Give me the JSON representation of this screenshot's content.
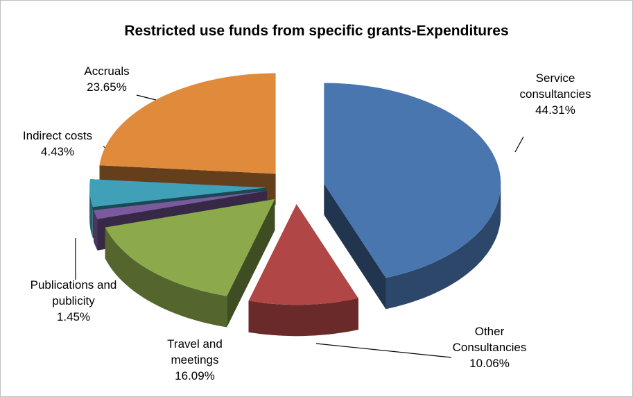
{
  "chart_data": {
    "type": "pie3d",
    "title": "Restricted use funds from specific grants-Expenditures",
    "categories": [
      "Service consultancies",
      "Other Consultancies",
      "Travel and meetings",
      "Publications and publicity",
      "Indirect costs",
      "Accruals"
    ],
    "values": [
      44.31,
      10.06,
      16.09,
      1.45,
      4.43,
      23.65
    ],
    "value_labels": [
      "44.31%",
      "10.06%",
      "16.09%",
      "1.45%",
      "4.43%",
      "23.65%"
    ],
    "colors": [
      "#4a76b0",
      "#b04646",
      "#8caa4b",
      "#7a5a9c",
      "#3fa0b8",
      "#e08a3c"
    ]
  }
}
